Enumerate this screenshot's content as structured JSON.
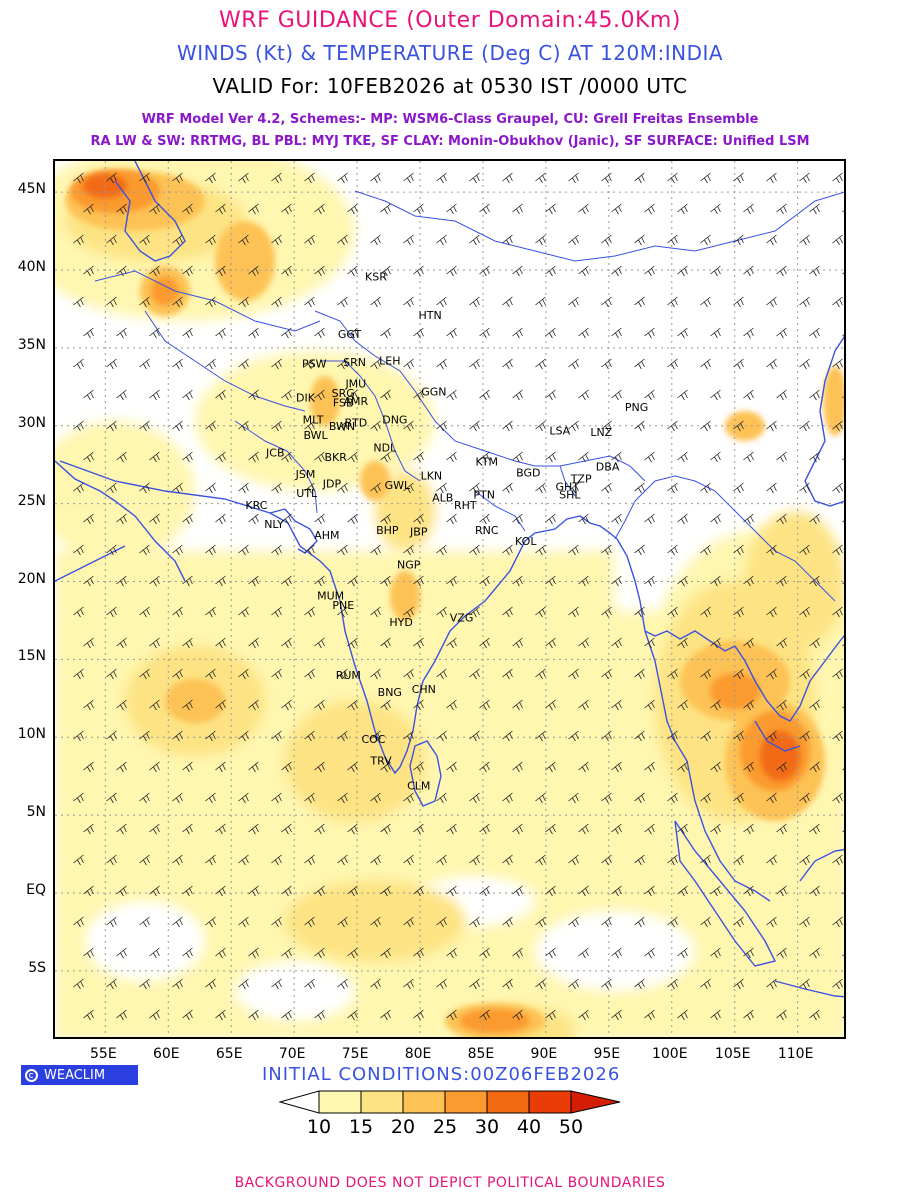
{
  "header": {
    "title": "WRF GUIDANCE (Outer Domain:45.0Km)",
    "subtitle": "WINDS (Kt) & TEMPERATURE (Deg C) AT 120M:INDIA",
    "valid": "VALID For: 10FEB2026 at 0530 IST /0000 UTC",
    "model_line1": "WRF Model Ver 4.2, Schemes:- MP: WSM6-Class Graupel, CU: Grell Freitas Ensemble",
    "model_line2": "RA LW & SW: RRTMG, BL PBL: MYJ TKE, SF CLAY: Monin-Obukhov (Janic), SF SURFACE: Unified LSM"
  },
  "map": {
    "lon_range": [
      51,
      114
    ],
    "lat_range": [
      -9.5,
      47
    ],
    "lat_labels": [
      "45N",
      "40N",
      "35N",
      "30N",
      "25N",
      "20N",
      "15N",
      "10N",
      "5N",
      "EQ",
      "5S"
    ],
    "lat_values": [
      45,
      40,
      35,
      30,
      25,
      20,
      15,
      10,
      5,
      0,
      -5
    ],
    "lon_labels": [
      "55E",
      "60E",
      "65E",
      "70E",
      "75E",
      "80E",
      "85E",
      "90E",
      "95E",
      "100E",
      "105E",
      "110E"
    ],
    "lon_values": [
      55,
      60,
      65,
      70,
      75,
      80,
      85,
      90,
      95,
      100,
      105,
      110
    ],
    "stations": [
      {
        "name": "KSR",
        "lon": 76.5,
        "lat": 39.6
      },
      {
        "name": "HTN",
        "lon": 80.8,
        "lat": 37.1
      },
      {
        "name": "GGT",
        "lon": 74.4,
        "lat": 35.9
      },
      {
        "name": "PSW",
        "lon": 71.6,
        "lat": 34.0
      },
      {
        "name": "SRN",
        "lon": 74.8,
        "lat": 34.1
      },
      {
        "name": "LEH",
        "lon": 77.6,
        "lat": 34.2
      },
      {
        "name": "JMU",
        "lon": 74.9,
        "lat": 32.7
      },
      {
        "name": "GGN",
        "lon": 81.1,
        "lat": 32.2
      },
      {
        "name": "DIK",
        "lon": 70.9,
        "lat": 31.8
      },
      {
        "name": "SRG",
        "lon": 73.9,
        "lat": 32.1
      },
      {
        "name": "FSB",
        "lon": 73.9,
        "lat": 31.5
      },
      {
        "name": "MLT",
        "lon": 71.5,
        "lat": 30.4
      },
      {
        "name": "AMR",
        "lon": 74.9,
        "lat": 31.6
      },
      {
        "name": "BWL",
        "lon": 71.7,
        "lat": 29.4
      },
      {
        "name": "BWN",
        "lon": 73.8,
        "lat": 30.0
      },
      {
        "name": "BTD",
        "lon": 74.9,
        "lat": 30.2
      },
      {
        "name": "DNG",
        "lon": 78.0,
        "lat": 30.4
      },
      {
        "name": "NDL",
        "lon": 77.2,
        "lat": 28.6
      },
      {
        "name": "JCB",
        "lon": 68.5,
        "lat": 28.3
      },
      {
        "name": "BKR",
        "lon": 73.3,
        "lat": 28.0
      },
      {
        "name": "JSM",
        "lon": 70.9,
        "lat": 26.9
      },
      {
        "name": "LKN",
        "lon": 80.9,
        "lat": 26.8
      },
      {
        "name": "KTM",
        "lon": 85.3,
        "lat": 27.7
      },
      {
        "name": "BGD",
        "lon": 88.6,
        "lat": 27.0
      },
      {
        "name": "TZP",
        "lon": 92.8,
        "lat": 26.6
      },
      {
        "name": "DBA",
        "lon": 94.9,
        "lat": 27.4
      },
      {
        "name": "UTL",
        "lon": 71.0,
        "lat": 25.7
      },
      {
        "name": "JDP",
        "lon": 73.0,
        "lat": 26.3
      },
      {
        "name": "GWL",
        "lon": 78.2,
        "lat": 26.2
      },
      {
        "name": "ALB",
        "lon": 81.8,
        "lat": 25.4
      },
      {
        "name": "PTN",
        "lon": 85.1,
        "lat": 25.6
      },
      {
        "name": "GHT",
        "lon": 91.7,
        "lat": 26.1
      },
      {
        "name": "SHL",
        "lon": 91.9,
        "lat": 25.6
      },
      {
        "name": "JBP",
        "lon": 79.9,
        "lat": 23.2
      },
      {
        "name": "RHT",
        "lon": 83.6,
        "lat": 24.9
      },
      {
        "name": "KRC",
        "lon": 67.0,
        "lat": 24.9
      },
      {
        "name": "NLY",
        "lon": 68.4,
        "lat": 23.7
      },
      {
        "name": "AHM",
        "lon": 72.6,
        "lat": 23.0
      },
      {
        "name": "BHP",
        "lon": 77.4,
        "lat": 23.3
      },
      {
        "name": "RNC",
        "lon": 85.3,
        "lat": 23.3
      },
      {
        "name": "KOL",
        "lon": 88.4,
        "lat": 22.6
      },
      {
        "name": "NGP",
        "lon": 79.1,
        "lat": 21.1
      },
      {
        "name": "MUM",
        "lon": 72.9,
        "lat": 19.1
      },
      {
        "name": "PNE",
        "lon": 73.9,
        "lat": 18.5
      },
      {
        "name": "HYD",
        "lon": 78.5,
        "lat": 17.4
      },
      {
        "name": "VZG",
        "lon": 83.3,
        "lat": 17.7
      },
      {
        "name": "RUM",
        "lon": 74.3,
        "lat": 14.0
      },
      {
        "name": "BNG",
        "lon": 77.6,
        "lat": 12.9
      },
      {
        "name": "CHN",
        "lon": 80.3,
        "lat": 13.1
      },
      {
        "name": "COC",
        "lon": 76.3,
        "lat": 9.9
      },
      {
        "name": "TRV",
        "lon": 76.9,
        "lat": 8.5
      },
      {
        "name": "CLM",
        "lon": 79.9,
        "lat": 6.9
      },
      {
        "name": "LSA",
        "lon": 91.1,
        "lat": 29.7
      },
      {
        "name": "LNZ",
        "lon": 94.4,
        "lat": 29.6
      },
      {
        "name": "PNG",
        "lon": 97.2,
        "lat": 31.2
      }
    ]
  },
  "logo": {
    "text": "WEACLIM"
  },
  "initial_conditions": "INITIAL CONDITIONS:00Z06FEB2026",
  "legend": {
    "labels": [
      "10",
      "15",
      "20",
      "25",
      "30",
      "40",
      "50"
    ],
    "colors": [
      "#ffffff",
      "#fff6b0",
      "#fde383",
      "#fdc255",
      "#fb9a2e",
      "#f26a12",
      "#ea3c06",
      "#d41e03"
    ]
  },
  "disclaimer": "BACKGROUND DOES NOT DEPICT POLITICAL BOUNDARIES",
  "colors": {
    "grid": "#999999",
    "coastline": "#3a52e0",
    "wind_numbers": "#3a52e0"
  }
}
